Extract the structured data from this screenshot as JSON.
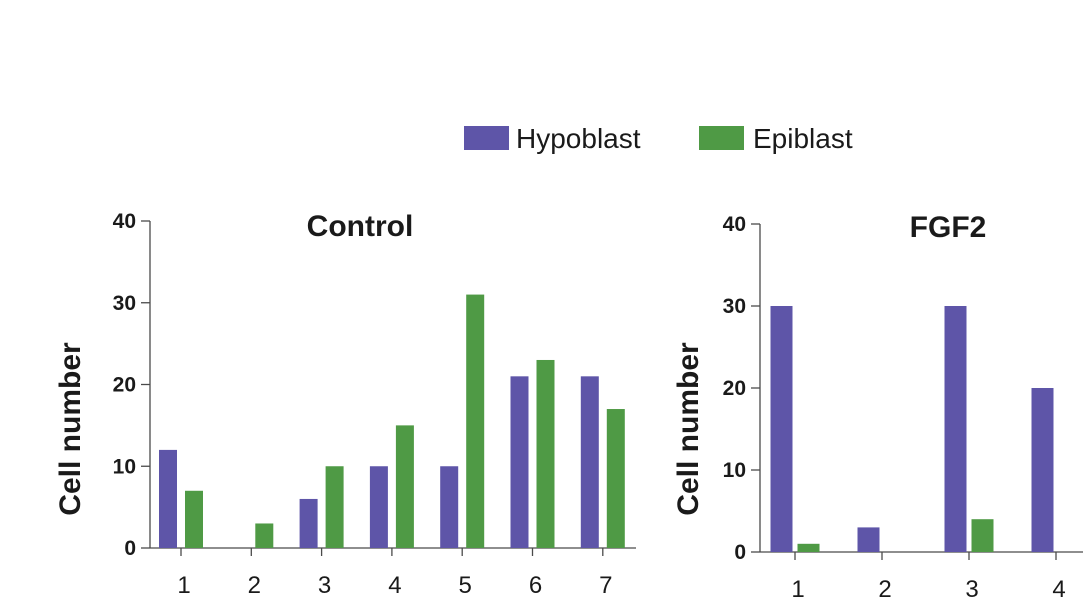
{
  "legend": [
    {
      "label": "Hypoblast",
      "color": "#5e55a8",
      "icon": "hypoblast-swatch"
    },
    {
      "label": "Epiblast",
      "color": "#4f9a45",
      "icon": "epiblast-swatch"
    }
  ],
  "chart_data": [
    {
      "type": "bar",
      "title": "Control",
      "xlabel": "",
      "ylabel": "Cell number",
      "ylim": [
        0,
        40
      ],
      "yticks": [
        "0",
        "10",
        "20",
        "30",
        "40"
      ],
      "categories": [
        "1",
        "2",
        "3",
        "4",
        "5",
        "6",
        "7"
      ],
      "series": [
        {
          "name": "Hypoblast",
          "color": "#5e55a8",
          "values": [
            12,
            0,
            6,
            10,
            10,
            21,
            21
          ]
        },
        {
          "name": "Epiblast",
          "color": "#4f9a45",
          "values": [
            7,
            3,
            10,
            15,
            31,
            23,
            17
          ]
        }
      ]
    },
    {
      "type": "bar",
      "title": "FGF2",
      "xlabel": "",
      "ylabel": "Cell number",
      "ylim": [
        0,
        40
      ],
      "yticks": [
        "0",
        "10",
        "20",
        "30",
        "40"
      ],
      "categories": [
        "1",
        "2",
        "3",
        "4"
      ],
      "series": [
        {
          "name": "Hypoblast",
          "color": "#5e55a8",
          "values": [
            30,
            3,
            30,
            20
          ]
        },
        {
          "name": "Epiblast",
          "color": "#4f9a45",
          "values": [
            1,
            0,
            4,
            0
          ]
        }
      ]
    }
  ]
}
